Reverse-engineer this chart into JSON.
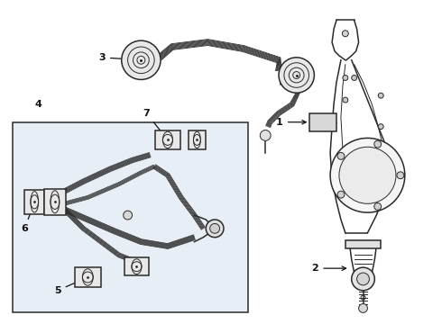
{
  "fig_bg": "#ffffff",
  "box_bg": "#e8eef5",
  "line_color": "#2a2a2a",
  "label_color": "#111111",
  "figsize": [
    4.9,
    3.6
  ],
  "dpi": 100,
  "xlim": [
    0,
    49
  ],
  "ylim": [
    0,
    36
  ]
}
